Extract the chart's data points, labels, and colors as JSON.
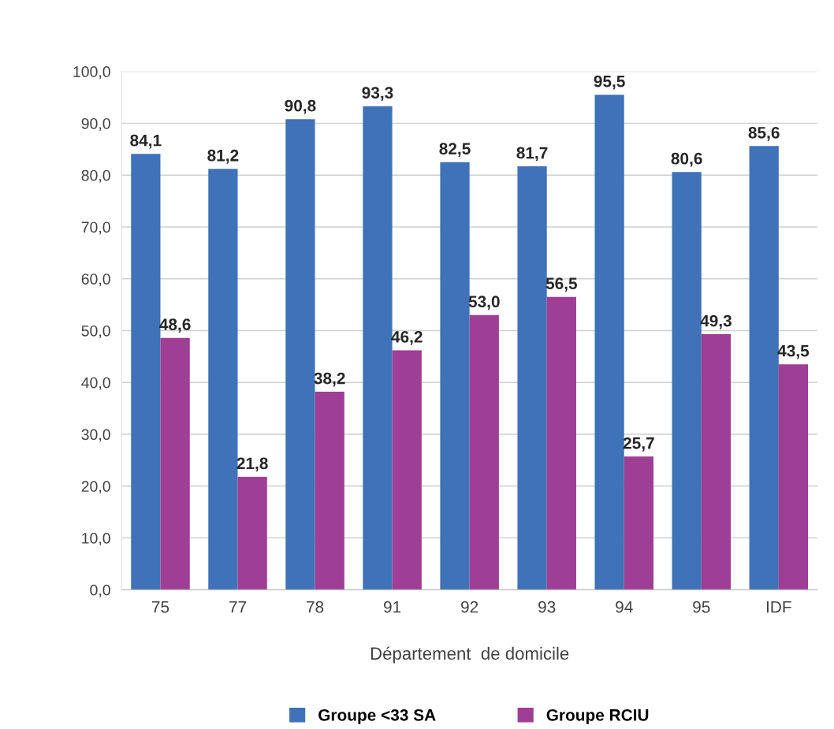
{
  "chart_data": {
    "type": "bar",
    "xlabel": "Département  de domicile",
    "categories": [
      "75",
      "77",
      "78",
      "91",
      "92",
      "93",
      "94",
      "95",
      "IDF"
    ],
    "series": [
      {
        "name": "Groupe <33 SA",
        "color": "#3f72b8",
        "values": [
          84.1,
          81.2,
          90.8,
          93.3,
          82.5,
          81.7,
          95.5,
          80.6,
          85.6
        ],
        "value_labels": [
          "84,1",
          "81,2",
          "90,8",
          "93,3",
          "82,5",
          "81,7",
          "95,5",
          "80,6",
          "85,6"
        ]
      },
      {
        "name": "Groupe RCIU",
        "color": "#9e3e94",
        "values": [
          48.6,
          21.8,
          38.2,
          46.2,
          53.0,
          56.5,
          25.7,
          49.3,
          43.5
        ],
        "value_labels": [
          "48,6",
          "21,8",
          "38,2",
          "46,2",
          "53,0",
          "56,5",
          "25,7",
          "49,3",
          "43,5"
        ]
      }
    ],
    "ylim": [
      0,
      100
    ],
    "yticks": [
      {
        "value": 0,
        "label": "0,0"
      },
      {
        "value": 10,
        "label": "10,0"
      },
      {
        "value": 20,
        "label": "20,0"
      },
      {
        "value": 30,
        "label": "30,0"
      },
      {
        "value": 40,
        "label": "40,0"
      },
      {
        "value": 50,
        "label": "50,0"
      },
      {
        "value": 60,
        "label": "60,0"
      },
      {
        "value": 70,
        "label": "70,0"
      },
      {
        "value": 80,
        "label": "80,0"
      },
      {
        "value": 90,
        "label": "90,0"
      },
      {
        "value": 100,
        "label": "100,0"
      }
    ],
    "grid": "y",
    "legend": "bottom"
  }
}
